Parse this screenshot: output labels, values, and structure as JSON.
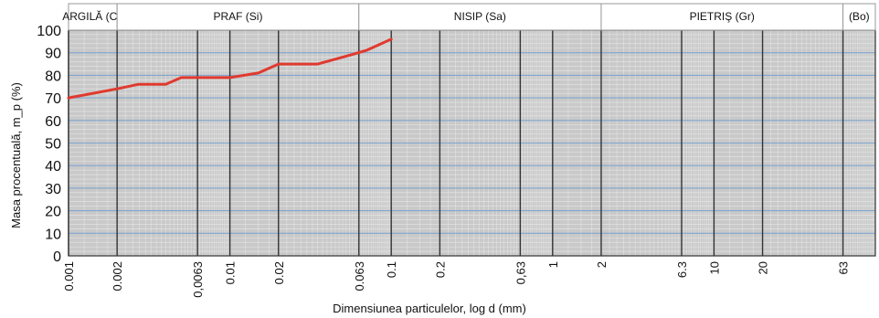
{
  "chart_data": {
    "type": "line",
    "xscale": "log",
    "xlim": [
      0.001,
      100
    ],
    "ylim": [
      0,
      100
    ],
    "grid": true,
    "xlabel": "Dimensiunea particulelor, log d (mm)",
    "ylabel": "Masa procentuală, m_p (%)",
    "bands": [
      {
        "label": "ARGILĂ (Cl)",
        "from": 0.001,
        "to": 0.002
      },
      {
        "label": "PRAF (Si)",
        "from": 0.002,
        "to": 0.063
      },
      {
        "label": "NISIP (Sa)",
        "from": 0.063,
        "to": 2
      },
      {
        "label": "PIETRIŞ (Gr)",
        "from": 2,
        "to": 63
      },
      {
        "label": "(Bo)",
        "from": 63,
        "to": 100
      }
    ],
    "x_ticks": [
      {
        "value": 0.001,
        "label": "0.001"
      },
      {
        "value": 0.002,
        "label": "0.002"
      },
      {
        "value": 0.0063,
        "label": "0,0063"
      },
      {
        "value": 0.01,
        "label": "0.01"
      },
      {
        "value": 0.02,
        "label": "0.02"
      },
      {
        "value": 0.063,
        "label": "0.063"
      },
      {
        "value": 0.1,
        "label": "0.1"
      },
      {
        "value": 0.2,
        "label": "0.2"
      },
      {
        "value": 0.63,
        "label": "0,63"
      },
      {
        "value": 1,
        "label": "1"
      },
      {
        "value": 2,
        "label": "2"
      },
      {
        "value": 6.3,
        "label": "6.3"
      },
      {
        "value": 10,
        "label": "10"
      },
      {
        "value": 20,
        "label": "20"
      },
      {
        "value": 63,
        "label": "63"
      }
    ],
    "y_ticks": [
      0,
      10,
      20,
      30,
      40,
      50,
      60,
      70,
      80,
      90,
      100
    ],
    "series": [
      {
        "color": "#e03a2f",
        "points": [
          {
            "x": 0.001,
            "y": 70
          },
          {
            "x": 0.002,
            "y": 74
          },
          {
            "x": 0.0027,
            "y": 76
          },
          {
            "x": 0.004,
            "y": 76
          },
          {
            "x": 0.005,
            "y": 79
          },
          {
            "x": 0.0063,
            "y": 79
          },
          {
            "x": 0.01,
            "y": 79
          },
          {
            "x": 0.015,
            "y": 81
          },
          {
            "x": 0.02,
            "y": 85
          },
          {
            "x": 0.025,
            "y": 85
          },
          {
            "x": 0.035,
            "y": 85
          },
          {
            "x": 0.05,
            "y": 88
          },
          {
            "x": 0.07,
            "y": 91
          },
          {
            "x": 0.1,
            "y": 96
          }
        ]
      }
    ]
  }
}
